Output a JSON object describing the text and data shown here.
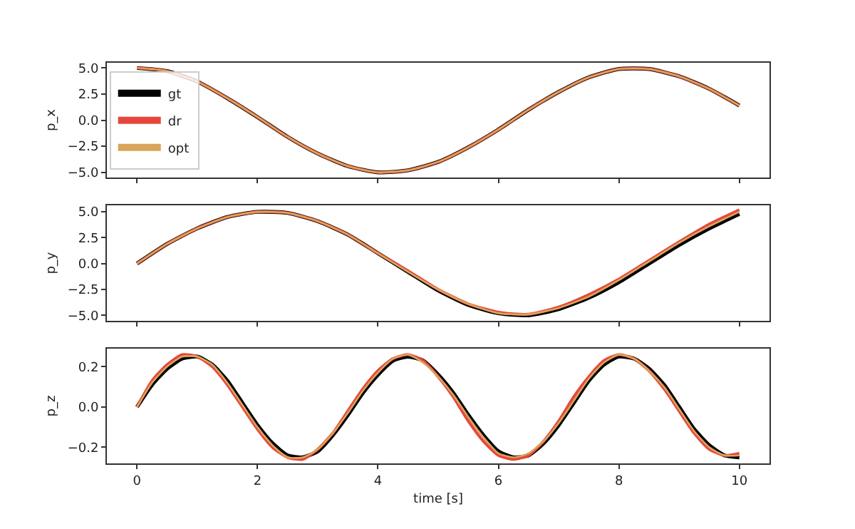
{
  "chart_data": [
    {
      "type": "line",
      "ylabel": "p_x",
      "xlim": [
        -0.5,
        10.5
      ],
      "ylim": [
        -5.5,
        5.5
      ],
      "yticks": [
        {
          "value": 5,
          "label": "5.0"
        },
        {
          "value": 2.5,
          "label": "2.5"
        },
        {
          "value": 0,
          "label": "0.0"
        },
        {
          "value": -2.5,
          "label": "−2.5"
        },
        {
          "value": -5,
          "label": "−5.0"
        }
      ],
      "tick_labels": "y",
      "grid": false,
      "legend": "bottom left",
      "x": [
        0,
        0.5,
        1,
        1.5,
        2,
        2.5,
        3,
        3.5,
        4,
        4.5,
        5,
        5.5,
        6,
        6.5,
        7,
        7.5,
        8,
        8.5,
        9,
        9.5,
        10
      ],
      "series": [
        {
          "name": "gt",
          "color": "#000000",
          "values": [
            5.0,
            4.7,
            3.7,
            2.1,
            0.3,
            -1.6,
            -3.2,
            -4.4,
            -5.0,
            -4.8,
            -4.0,
            -2.6,
            -0.9,
            1.0,
            2.7,
            4.1,
            4.9,
            4.9,
            4.2,
            3.0,
            1.4
          ]
        },
        {
          "name": "dr",
          "color": "#e8463c",
          "values": [
            5.0,
            4.7,
            3.7,
            2.1,
            0.3,
            -1.6,
            -3.2,
            -4.4,
            -5.0,
            -4.8,
            -4.0,
            -2.6,
            -0.9,
            1.0,
            2.7,
            4.1,
            4.9,
            4.9,
            4.2,
            3.0,
            1.4
          ]
        },
        {
          "name": "opt",
          "color": "#d9a55a",
          "values": [
            5.0,
            4.7,
            3.7,
            2.1,
            0.3,
            -1.6,
            -3.2,
            -4.4,
            -5.0,
            -4.8,
            -4.0,
            -2.6,
            -0.9,
            1.0,
            2.7,
            4.1,
            4.9,
            4.9,
            4.2,
            3.0,
            1.4
          ]
        }
      ]
    },
    {
      "type": "line",
      "ylabel": "p_y",
      "xlim": [
        -0.5,
        10.5
      ],
      "ylim": [
        -5.5,
        5.6
      ],
      "yticks": [
        {
          "value": 5,
          "label": "5.0"
        },
        {
          "value": 2.5,
          "label": "2.5"
        },
        {
          "value": 0,
          "label": "0.0"
        },
        {
          "value": -2.5,
          "label": "−2.5"
        },
        {
          "value": -5,
          "label": "−5.0"
        }
      ],
      "tick_labels": "y",
      "grid": false,
      "x": [
        0,
        0.5,
        1,
        1.5,
        2,
        2.5,
        3,
        3.5,
        4,
        4.5,
        5,
        5.5,
        6,
        6.5,
        7,
        7.5,
        8,
        8.5,
        9,
        9.5,
        10
      ],
      "series": [
        {
          "color": "#000000",
          "values": [
            0,
            1.9,
            3.4,
            4.5,
            5.0,
            4.9,
            4.1,
            2.8,
            1.0,
            -0.8,
            -2.6,
            -4.0,
            -4.8,
            -5.0,
            -4.4,
            -3.3,
            -1.8,
            0.0,
            1.8,
            3.4,
            4.8
          ]
        },
        {
          "color": "#e8463c",
          "values": [
            0,
            1.9,
            3.4,
            4.5,
            5.0,
            4.9,
            4.1,
            2.8,
            1.0,
            -0.7,
            -2.5,
            -3.9,
            -4.7,
            -4.9,
            -4.2,
            -3.0,
            -1.5,
            0.3,
            2.1,
            3.8,
            5.2
          ]
        },
        {
          "color": "#d9a55a",
          "values": [
            0,
            1.9,
            3.4,
            4.5,
            5.0,
            4.9,
            4.1,
            2.8,
            1.0,
            -0.8,
            -2.5,
            -3.9,
            -4.8,
            -4.9,
            -4.3,
            -3.2,
            -1.6,
            0.2,
            2.0,
            3.6,
            5.0
          ]
        }
      ]
    },
    {
      "type": "line",
      "ylabel": "p_z",
      "xlabel": "time [s]",
      "xlim": [
        -0.5,
        10.5
      ],
      "ylim": [
        -0.28,
        0.29
      ],
      "xticks": [
        0,
        2,
        4,
        6,
        8,
        10
      ],
      "yticks": [
        {
          "value": 0.2,
          "label": "0.2"
        },
        {
          "value": 0,
          "label": "0.0"
        },
        {
          "value": -0.2,
          "label": "−0.2"
        }
      ],
      "grid": false,
      "x": [
        0,
        0.25,
        0.5,
        0.75,
        1,
        1.25,
        1.5,
        1.75,
        2,
        2.25,
        2.5,
        2.75,
        3,
        3.25,
        3.5,
        3.75,
        4,
        4.25,
        4.5,
        4.75,
        5,
        5.25,
        5.5,
        5.75,
        6,
        6.25,
        6.5,
        6.75,
        7,
        7.25,
        7.5,
        7.75,
        8,
        8.25,
        8.5,
        8.75,
        9,
        9.25,
        9.5,
        9.75,
        10
      ],
      "series": [
        {
          "color": "#000000",
          "values": [
            0,
            0.11,
            0.19,
            0.24,
            0.25,
            0.21,
            0.13,
            0.02,
            -0.09,
            -0.18,
            -0.24,
            -0.25,
            -0.22,
            -0.14,
            -0.04,
            0.07,
            0.16,
            0.23,
            0.25,
            0.23,
            0.16,
            0.07,
            -0.04,
            -0.14,
            -0.22,
            -0.25,
            -0.24,
            -0.18,
            -0.09,
            0.02,
            0.13,
            0.21,
            0.25,
            0.24,
            0.19,
            0.11,
            0,
            -0.11,
            -0.19,
            -0.24,
            -0.25
          ]
        },
        {
          "color": "#e8463c",
          "values": [
            0,
            0.13,
            0.21,
            0.26,
            0.25,
            0.2,
            0.11,
            0,
            -0.11,
            -0.2,
            -0.25,
            -0.26,
            -0.21,
            -0.13,
            -0.02,
            0.09,
            0.18,
            0.24,
            0.26,
            0.23,
            0.15,
            0.05,
            -0.07,
            -0.17,
            -0.24,
            -0.26,
            -0.24,
            -0.17,
            -0.07,
            0.05,
            0.15,
            0.23,
            0.26,
            0.24,
            0.18,
            0.09,
            -0.02,
            -0.13,
            -0.21,
            -0.24,
            -0.23
          ]
        },
        {
          "color": "#d9a55a",
          "values": [
            0,
            0.12,
            0.2,
            0.25,
            0.25,
            0.21,
            0.12,
            0.01,
            -0.1,
            -0.19,
            -0.25,
            -0.25,
            -0.21,
            -0.13,
            -0.03,
            0.08,
            0.17,
            0.24,
            0.26,
            0.22,
            0.15,
            0.06,
            -0.05,
            -0.15,
            -0.23,
            -0.25,
            -0.23,
            -0.17,
            -0.08,
            0.03,
            0.14,
            0.22,
            0.26,
            0.24,
            0.18,
            0.1,
            -0.01,
            -0.12,
            -0.2,
            -0.24,
            -0.24
          ]
        }
      ]
    }
  ]
}
